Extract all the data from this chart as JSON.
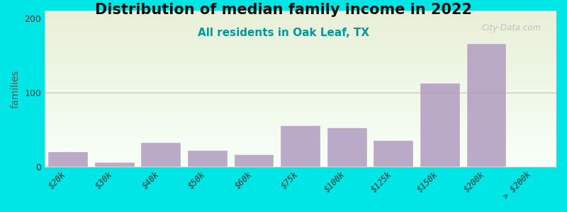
{
  "title": "Distribution of median family income in 2022",
  "subtitle": "All residents in Oak Leaf, TX",
  "watermark": "City-Data.com",
  "ylabel": "families",
  "categories": [
    "$20k",
    "$30k",
    "$40k",
    "$50k",
    "$60k",
    "$75k",
    "$100k",
    "$125k",
    "$150k",
    "$200k",
    "> $200k"
  ],
  "values": [
    20,
    5,
    32,
    22,
    16,
    55,
    52,
    35,
    112,
    165,
    0
  ],
  "bar_color": "#b09cc0",
  "bar_alpha": 0.85,
  "bg_color": "#00e5e5",
  "plot_bg_top": "#e8f0d8",
  "plot_bg_bottom": "#f8fff8",
  "title_fontsize": 15,
  "subtitle_fontsize": 11,
  "subtitle_color": "#009999",
  "ylabel_color": "#555555",
  "ylim": [
    0,
    210
  ],
  "yticks": [
    0,
    100,
    200
  ],
  "grid_color": "#e8b0b0",
  "watermark_color": "#aaaaaa"
}
